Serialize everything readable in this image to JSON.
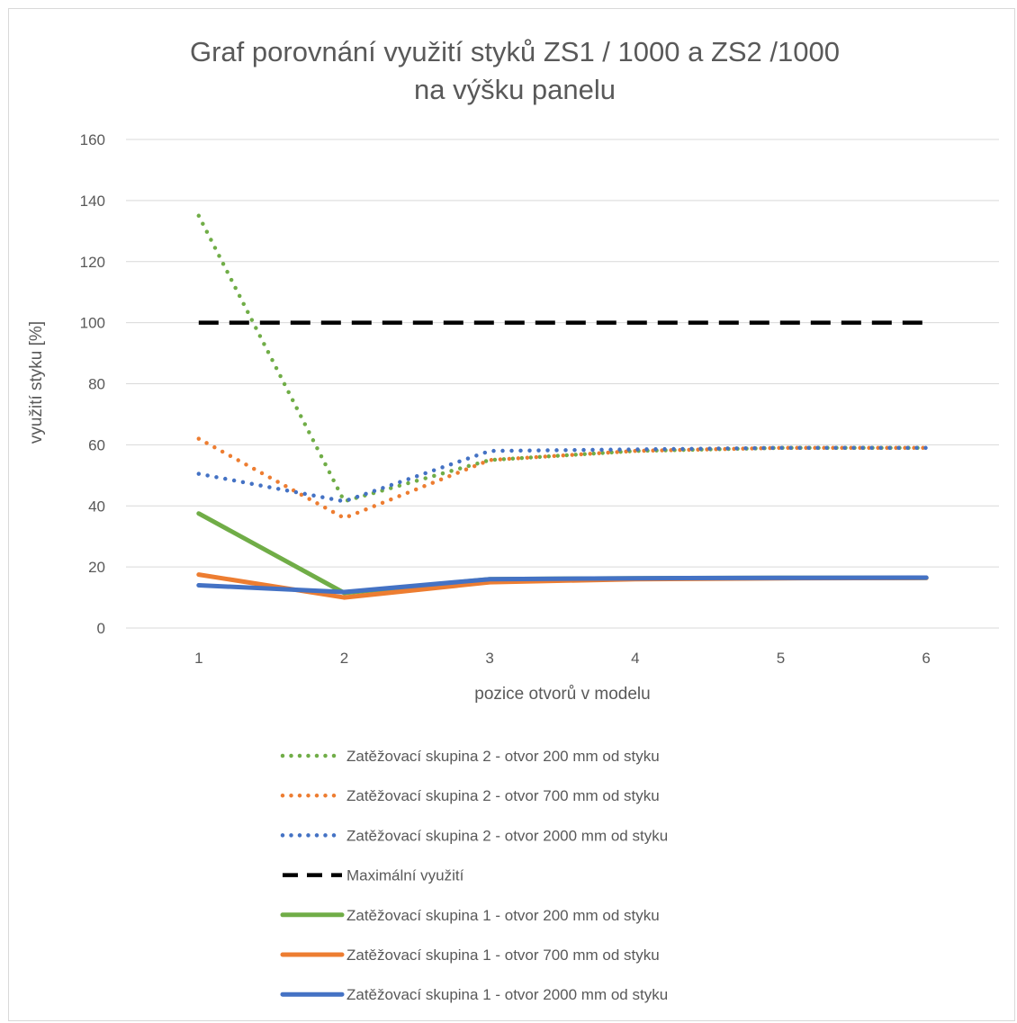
{
  "chart_data": {
    "type": "line",
    "title_lines": [
      "Graf porovnání  využití styků ZS1 / 1000 a ZS2 /1000",
      "na výšku panelu"
    ],
    "xlabel": "pozice otvorů v modelu",
    "ylabel": "využití styku [%]",
    "categories": [
      "1",
      "2",
      "3",
      "4",
      "5",
      "6"
    ],
    "y_ticks": [
      "0",
      "20",
      "40",
      "60",
      "80",
      "100",
      "120",
      "140",
      "160"
    ],
    "ylim": [
      0,
      160
    ],
    "grid": "horizontal",
    "legend_position": "bottom",
    "series": [
      {
        "name": "Zatěžovací skupina 2 - otvor 200 mm od styku",
        "values": [
          135,
          41.5,
          55,
          58,
          59,
          59
        ],
        "color": "#70ad47",
        "style": "dotted"
      },
      {
        "name": "Zatěžovací skupina 2 - otvor 700 mm od styku",
        "values": [
          62,
          36,
          55,
          58,
          59,
          59
        ],
        "color": "#ed7d31",
        "style": "dotted"
      },
      {
        "name": "Zatěžovací skupina 2 - otvor 2000 mm od styku",
        "values": [
          50.5,
          41.5,
          58,
          58.5,
          59,
          59
        ],
        "color": "#4472c4",
        "style": "dotted"
      },
      {
        "name": "Maximální využití",
        "values": [
          100,
          100,
          100,
          100,
          100,
          100
        ],
        "color": "#000000",
        "style": "dashed"
      },
      {
        "name": "Zatěžovací skupina 1 - otvor 200 mm od styku",
        "values": [
          37.5,
          11.5,
          16,
          16.3,
          16.4,
          16.4
        ],
        "color": "#70ad47",
        "style": "solid"
      },
      {
        "name": "Zatěžovací skupina 1 - otvor 700 mm od styku",
        "values": [
          17.5,
          10,
          15,
          16,
          16.3,
          16.4
        ],
        "color": "#ed7d31",
        "style": "solid"
      },
      {
        "name": "Zatěžovací skupina 1 - otvor 2000 mm od styku",
        "values": [
          14,
          11.8,
          16,
          16.3,
          16.4,
          16.5
        ],
        "color": "#4472c4",
        "style": "solid"
      }
    ]
  }
}
